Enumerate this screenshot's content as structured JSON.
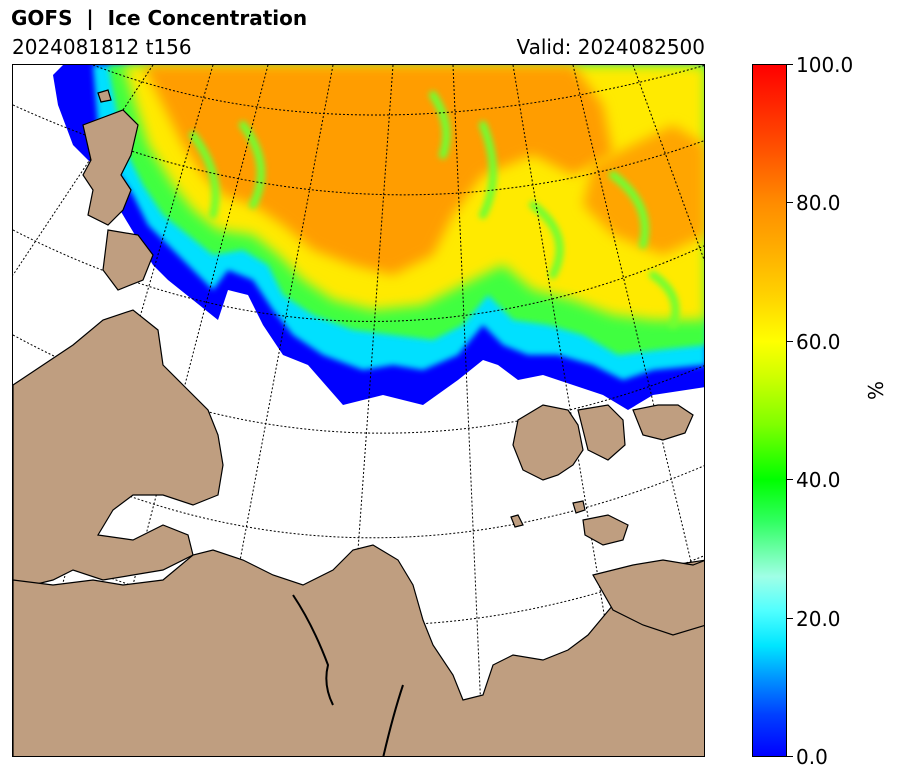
{
  "header": {
    "title": "GOFS  |  Ice Concentration",
    "run": "2024081812 t156",
    "valid": "Valid: 2024082500"
  },
  "colorbar": {
    "unit": "%",
    "ticks": [
      "100.0",
      "80.0",
      "60.0",
      "40.0",
      "20.0",
      "0.0"
    ],
    "range": [
      0,
      100
    ]
  },
  "colors": {
    "land": "#bf9e80",
    "coastline": "#000000",
    "ocean": "#ffffff"
  },
  "map": {
    "graticule": "dotted",
    "projection": "polar stereographic"
  }
}
